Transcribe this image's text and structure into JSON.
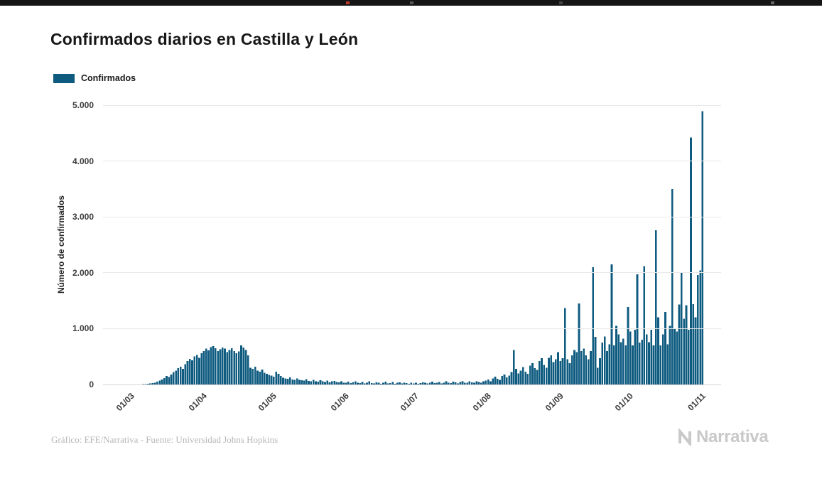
{
  "top_strip": {
    "color": "#151515"
  },
  "title": "Confirmados diarios en Castilla y León",
  "legend": {
    "label": "Confirmados"
  },
  "chart_data": {
    "type": "bar",
    "title": "Confirmados diarios en Castilla y León",
    "xlabel": "",
    "ylabel": "Número de confirmados",
    "ylim": [
      0,
      5000
    ],
    "yticks": [
      0,
      1000,
      2000,
      3000,
      4000,
      5000
    ],
    "ytick_labels": [
      "0",
      "1.000",
      "2.000",
      "3.000",
      "4.000",
      "5.000"
    ],
    "x_tick_labels": [
      "01/03",
      "01/04",
      "01/05",
      "01/06",
      "01/07",
      "01/08",
      "01/09",
      "01/10",
      "01/11"
    ],
    "x_tick_indices": [
      0,
      31,
      61,
      92,
      122,
      153,
      184,
      214,
      245
    ],
    "series_name": "Confirmados",
    "start_date": "01/03",
    "frequency": "daily",
    "bar_color": "#0f5b80",
    "grid": true,
    "legend_position": "top-left",
    "values": [
      0,
      0,
      1,
      1,
      2,
      3,
      5,
      8,
      12,
      18,
      25,
      35,
      50,
      70,
      90,
      115,
      150,
      135,
      180,
      220,
      250,
      290,
      320,
      280,
      360,
      420,
      460,
      430,
      500,
      530,
      480,
      560,
      600,
      640,
      610,
      670,
      690,
      650,
      600,
      630,
      660,
      640,
      580,
      620,
      650,
      600,
      560,
      590,
      700,
      660,
      620,
      520,
      300,
      280,
      320,
      250,
      230,
      270,
      210,
      190,
      170,
      160,
      140,
      230,
      190,
      150,
      120,
      110,
      100,
      130,
      90,
      85,
      110,
      80,
      75,
      70,
      95,
      65,
      60,
      85,
      55,
      50,
      75,
      60,
      45,
      70,
      40,
      55,
      65,
      45,
      40,
      60,
      35,
      30,
      50,
      25,
      40,
      60,
      30,
      25,
      45,
      20,
      35,
      55,
      25,
      20,
      40,
      30,
      15,
      35,
      50,
      20,
      25,
      45,
      15,
      30,
      40,
      20,
      35,
      25,
      15,
      30,
      20,
      35,
      15,
      25,
      40,
      30,
      20,
      35,
      50,
      25,
      30,
      45,
      20,
      35,
      55,
      30,
      25,
      50,
      40,
      20,
      45,
      60,
      30,
      35,
      55,
      40,
      30,
      60,
      45,
      35,
      55,
      70,
      90,
      60,
      110,
      140,
      100,
      80,
      150,
      180,
      130,
      160,
      220,
      620,
      280,
      200,
      250,
      310,
      230,
      190,
      340,
      380,
      290,
      260,
      420,
      470,
      350,
      300,
      480,
      520,
      400,
      450,
      580,
      420,
      470,
      1370,
      450,
      380,
      520,
      620,
      580,
      1450,
      600,
      640,
      520,
      450,
      600,
      2100,
      850,
      300,
      470,
      750,
      860,
      600,
      720,
      2150,
      700,
      1050,
      900,
      760,
      820,
      700,
      1390,
      950,
      700,
      980,
      1970,
      750,
      800,
      2120,
      900,
      760,
      980,
      700,
      2760,
      1200,
      700,
      900,
      1300,
      720,
      1050,
      3500,
      1000,
      950,
      1430,
      2010,
      1180,
      1420,
      980,
      4420,
      1440,
      1200,
      1960,
      2040,
      4890
    ]
  },
  "footer": {
    "source": "Gráfico: EFE/Narrativa - Fuente: Universidad Johns Hopkins"
  },
  "logo": {
    "text": "Narrativa"
  }
}
